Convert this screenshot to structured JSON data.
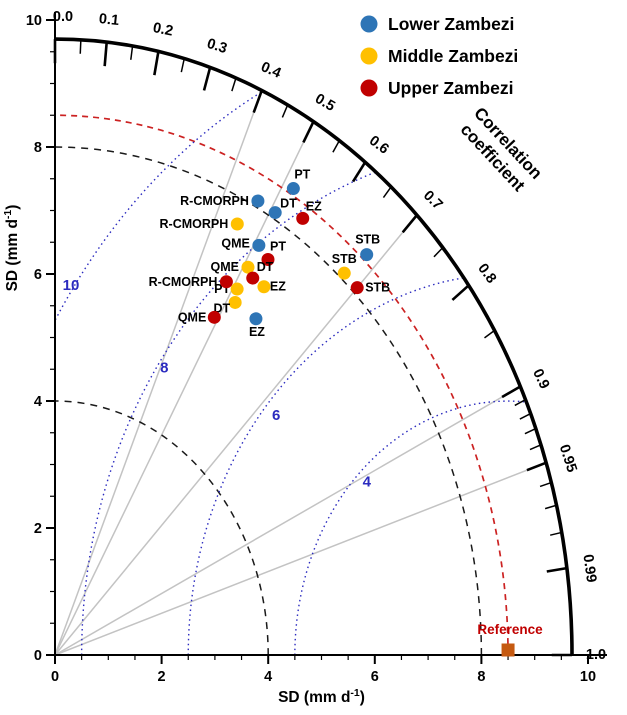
{
  "legend": {
    "items": [
      {
        "label": "Lower Zambezi",
        "color": "#2e75b6"
      },
      {
        "label": "Middle Zambezi",
        "color": "#ffc000"
      },
      {
        "label": "Upper Zambezi",
        "color": "#c00000"
      }
    ]
  },
  "chart_data": {
    "type": "scatter",
    "subtype": "taylor-diagram",
    "title": "",
    "xlabel": {
      "pre": "SD (mm d",
      "sup": "-1",
      "post": ")"
    },
    "ylabel": {
      "pre": "SD (mm d",
      "sup": "-1",
      "post": ")"
    },
    "correlation_axis_title": [
      "Correlation",
      "coefficient"
    ],
    "sd_axis": {
      "min": 0,
      "max": 10,
      "major_ticks": [
        0,
        2,
        4,
        6,
        8,
        10
      ],
      "minor_tick_step": 0.5,
      "outer_radius": 9.7
    },
    "sd_circles_dashed": [
      4,
      8
    ],
    "reference": {
      "sd": 8.5,
      "label": "Reference",
      "marker_color": "#c55a11",
      "label_color": "#c00000",
      "arc_color": "#cc2222"
    },
    "rmsd": {
      "circles": [
        4,
        6,
        8,
        10
      ],
      "color": "#2b2bbf",
      "labels": [
        {
          "value": 10,
          "x": 0.3,
          "y": 5.75
        },
        {
          "value": 8,
          "x": 2.05,
          "y": 4.45
        },
        {
          "value": 6,
          "x": 4.15,
          "y": 3.7
        },
        {
          "value": 4,
          "x": 5.85,
          "y": 2.65
        }
      ]
    },
    "correlation": {
      "major_ticks": [
        0,
        0.1,
        0.2,
        0.3,
        0.4,
        0.5,
        0.6,
        0.7,
        0.8,
        0.9,
        0.95,
        0.99,
        1.0
      ],
      "minor_ticks": [
        0.05,
        0.15,
        0.25,
        0.35,
        0.45,
        0.55,
        0.65,
        0.75,
        0.85,
        0.91,
        0.92,
        0.93,
        0.94,
        0.96,
        0.97,
        0.98
      ],
      "rays": [
        0.4,
        0.5,
        0.7,
        0.9,
        0.95
      ]
    },
    "series": [
      {
        "name": "Lower Zambezi",
        "color": "#2e75b6",
        "points": [
          {
            "label": "R-CMORPH",
            "sd": 8.1,
            "corr": 0.47,
            "anchor": "end",
            "dx": -9,
            "dy": 4
          },
          {
            "label": "DT",
            "sd": 8.1,
            "corr": 0.51,
            "anchor": "start",
            "dx": 5,
            "dy": -5
          },
          {
            "label": "PT",
            "sd": 8.6,
            "corr": 0.52,
            "anchor": "start",
            "dx": 1,
            "dy": -10
          },
          {
            "label": "EZ",
            "sd": 6.5,
            "corr": 0.58,
            "anchor": "middle",
            "dx": 1,
            "dy": 17
          },
          {
            "label": "QME",
            "sd": 7.5,
            "corr": 0.51,
            "anchor": "end",
            "dx": -9,
            "dy": 2
          },
          {
            "label": "STB",
            "sd": 8.6,
            "corr": 0.68,
            "anchor": "middle",
            "dx": 1,
            "dy": -11
          }
        ]
      },
      {
        "name": "Middle Zambezi",
        "color": "#ffc000",
        "points": [
          {
            "label": "R-CMORPH",
            "sd": 7.6,
            "corr": 0.45,
            "anchor": "end",
            "dx": -9,
            "dy": 4
          },
          {
            "label": "QME",
            "sd": 7.1,
            "corr": 0.51,
            "anchor": "end",
            "dx": -9,
            "dy": 4
          },
          {
            "label": "PT",
            "sd": 6.7,
            "corr": 0.51,
            "anchor": "end",
            "dx": -7,
            "dy": 4
          },
          {
            "label": "EZ",
            "sd": 7.0,
            "corr": 0.56,
            "anchor": "start",
            "dx": 6,
            "dy": 4
          },
          {
            "label": "DT",
            "sd": 6.5,
            "corr": 0.52,
            "anchor": "end",
            "dx": -5,
            "dy": 10
          },
          {
            "label": "STB",
            "sd": 8.1,
            "corr": 0.67,
            "anchor": "middle",
            "dx": 0,
            "dy": -10
          }
        ]
      },
      {
        "name": "Upper Zambezi",
        "color": "#c00000",
        "points": [
          {
            "label": "EZ",
            "sd": 8.3,
            "corr": 0.56,
            "anchor": "start",
            "dx": 3,
            "dy": -8
          },
          {
            "label": "PT",
            "sd": 7.4,
            "corr": 0.54,
            "anchor": "start",
            "dx": 2,
            "dy": -9
          },
          {
            "label": "DT",
            "sd": 7.0,
            "corr": 0.53,
            "anchor": "start",
            "dx": 4,
            "dy": -7
          },
          {
            "label": "R-CMORPH",
            "sd": 6.7,
            "corr": 0.48,
            "anchor": "end",
            "dx": -9,
            "dy": 4
          },
          {
            "label": "STB",
            "sd": 8.1,
            "corr": 0.7,
            "anchor": "start",
            "dx": 8,
            "dy": 4
          },
          {
            "label": "QME",
            "sd": 6.1,
            "corr": 0.49,
            "anchor": "end",
            "dx": -8,
            "dy": 4
          }
        ]
      }
    ]
  }
}
